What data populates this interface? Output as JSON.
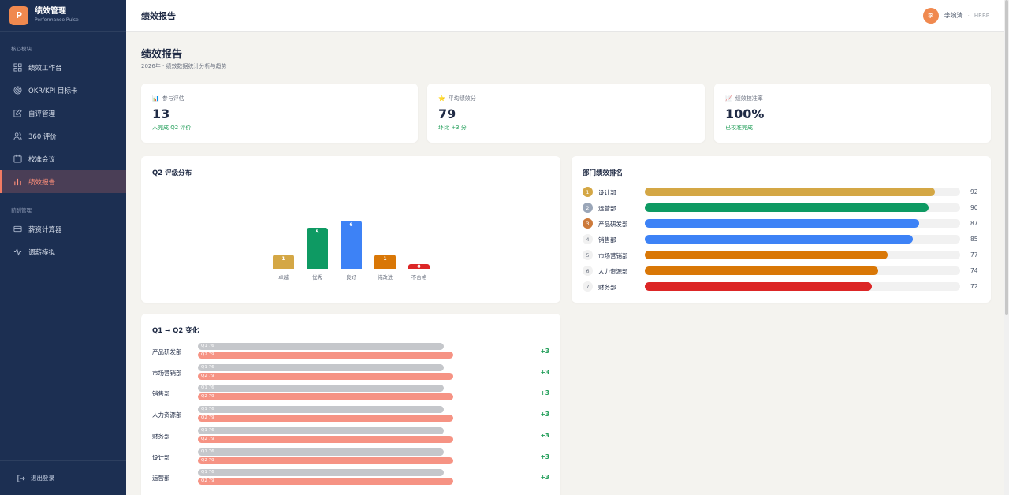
{
  "brand": {
    "logo_letter": "P",
    "title": "绩效管理",
    "subtitle": "Performance Pulse"
  },
  "sidebar": {
    "section_core": "核心模块",
    "items": [
      {
        "label": "绩效工作台",
        "icon": "grid-icon"
      },
      {
        "label": "OKR/KPI 目标卡",
        "icon": "target-icon"
      },
      {
        "label": "自评管理",
        "icon": "edit-icon"
      },
      {
        "label": "360 评价",
        "icon": "users-icon"
      },
      {
        "label": "校准会议",
        "icon": "calendar-icon"
      },
      {
        "label": "绩效报告",
        "icon": "bar-chart-icon",
        "active": true
      }
    ],
    "section_salary": "薪酬管理",
    "salary_items": [
      {
        "label": "薪资计算器",
        "icon": "card-icon"
      },
      {
        "label": "调薪模拟",
        "icon": "pulse-icon"
      }
    ],
    "logout": "退出登录"
  },
  "topbar": {
    "title": "绩效报告",
    "user_initial": "李",
    "user_name": "李婉清",
    "separator": "·",
    "user_role": "HRBP"
  },
  "page": {
    "title": "绩效报告",
    "subtitle": "2026年 · 绩效数据统计分析与趋势"
  },
  "stats": [
    {
      "emoji": "📊",
      "label": "参与评估",
      "value": "13",
      "note": "人完成 Q2 评价"
    },
    {
      "emoji": "⭐",
      "label": "平均绩效分",
      "value": "79",
      "note": "环比 +3 分"
    },
    {
      "emoji": "📈",
      "label": "绩效校准率",
      "value": "100%",
      "note": "已校准完成"
    }
  ],
  "chart_data": {
    "type": "bar",
    "title": "Q2 评级分布",
    "categories": [
      "卓越",
      "优秀",
      "良好",
      "待改进",
      "不合格"
    ],
    "values": [
      1,
      5,
      6,
      1,
      0
    ],
    "colors": [
      "#d4a745",
      "#0e9a63",
      "#3d82f6",
      "#d97706",
      "#dc2626"
    ],
    "ylim": [
      0,
      6
    ]
  },
  "ranking": {
    "title": "部门绩效排名",
    "rows": [
      {
        "rank": "1",
        "name": "设计部",
        "score": 92,
        "color": "#d4a745",
        "badge": "#d4a745"
      },
      {
        "rank": "2",
        "name": "运营部",
        "score": 90,
        "color": "#0e9a63",
        "badge": "#9aa6b8"
      },
      {
        "rank": "3",
        "name": "产品研发部",
        "score": 87,
        "color": "#3d82f6",
        "badge": "#cd7a3a"
      },
      {
        "rank": "4",
        "name": "销售部",
        "score": 85,
        "color": "#3d82f6"
      },
      {
        "rank": "5",
        "name": "市场营销部",
        "score": 77,
        "color": "#d97706"
      },
      {
        "rank": "6",
        "name": "人力资源部",
        "score": 74,
        "color": "#d97706"
      },
      {
        "rank": "7",
        "name": "财务部",
        "score": 72,
        "color": "#dc2626"
      }
    ]
  },
  "compare": {
    "title": "Q1 → Q2 变化",
    "rows": [
      {
        "name": "产品研发部",
        "q1_label": "Q1 76",
        "q2_label": "Q2 79",
        "q1": 76,
        "q2": 79,
        "delta": "+3"
      },
      {
        "name": "市场营销部",
        "q1_label": "Q1 76",
        "q2_label": "Q2 79",
        "q1": 76,
        "q2": 79,
        "delta": "+3"
      },
      {
        "name": "销售部",
        "q1_label": "Q1 76",
        "q2_label": "Q2 79",
        "q1": 76,
        "q2": 79,
        "delta": "+3"
      },
      {
        "name": "人力资源部",
        "q1_label": "Q1 76",
        "q2_label": "Q2 79",
        "q1": 76,
        "q2": 79,
        "delta": "+3"
      },
      {
        "name": "财务部",
        "q1_label": "Q1 76",
        "q2_label": "Q2 79",
        "q1": 76,
        "q2": 79,
        "delta": "+3"
      },
      {
        "name": "设计部",
        "q1_label": "Q1 76",
        "q2_label": "Q2 79",
        "q1": 76,
        "q2": 79,
        "delta": "+3"
      },
      {
        "name": "运营部",
        "q1_label": "Q1 76",
        "q2_label": "Q2 79",
        "q1": 76,
        "q2": 79,
        "delta": "+3"
      }
    ]
  }
}
